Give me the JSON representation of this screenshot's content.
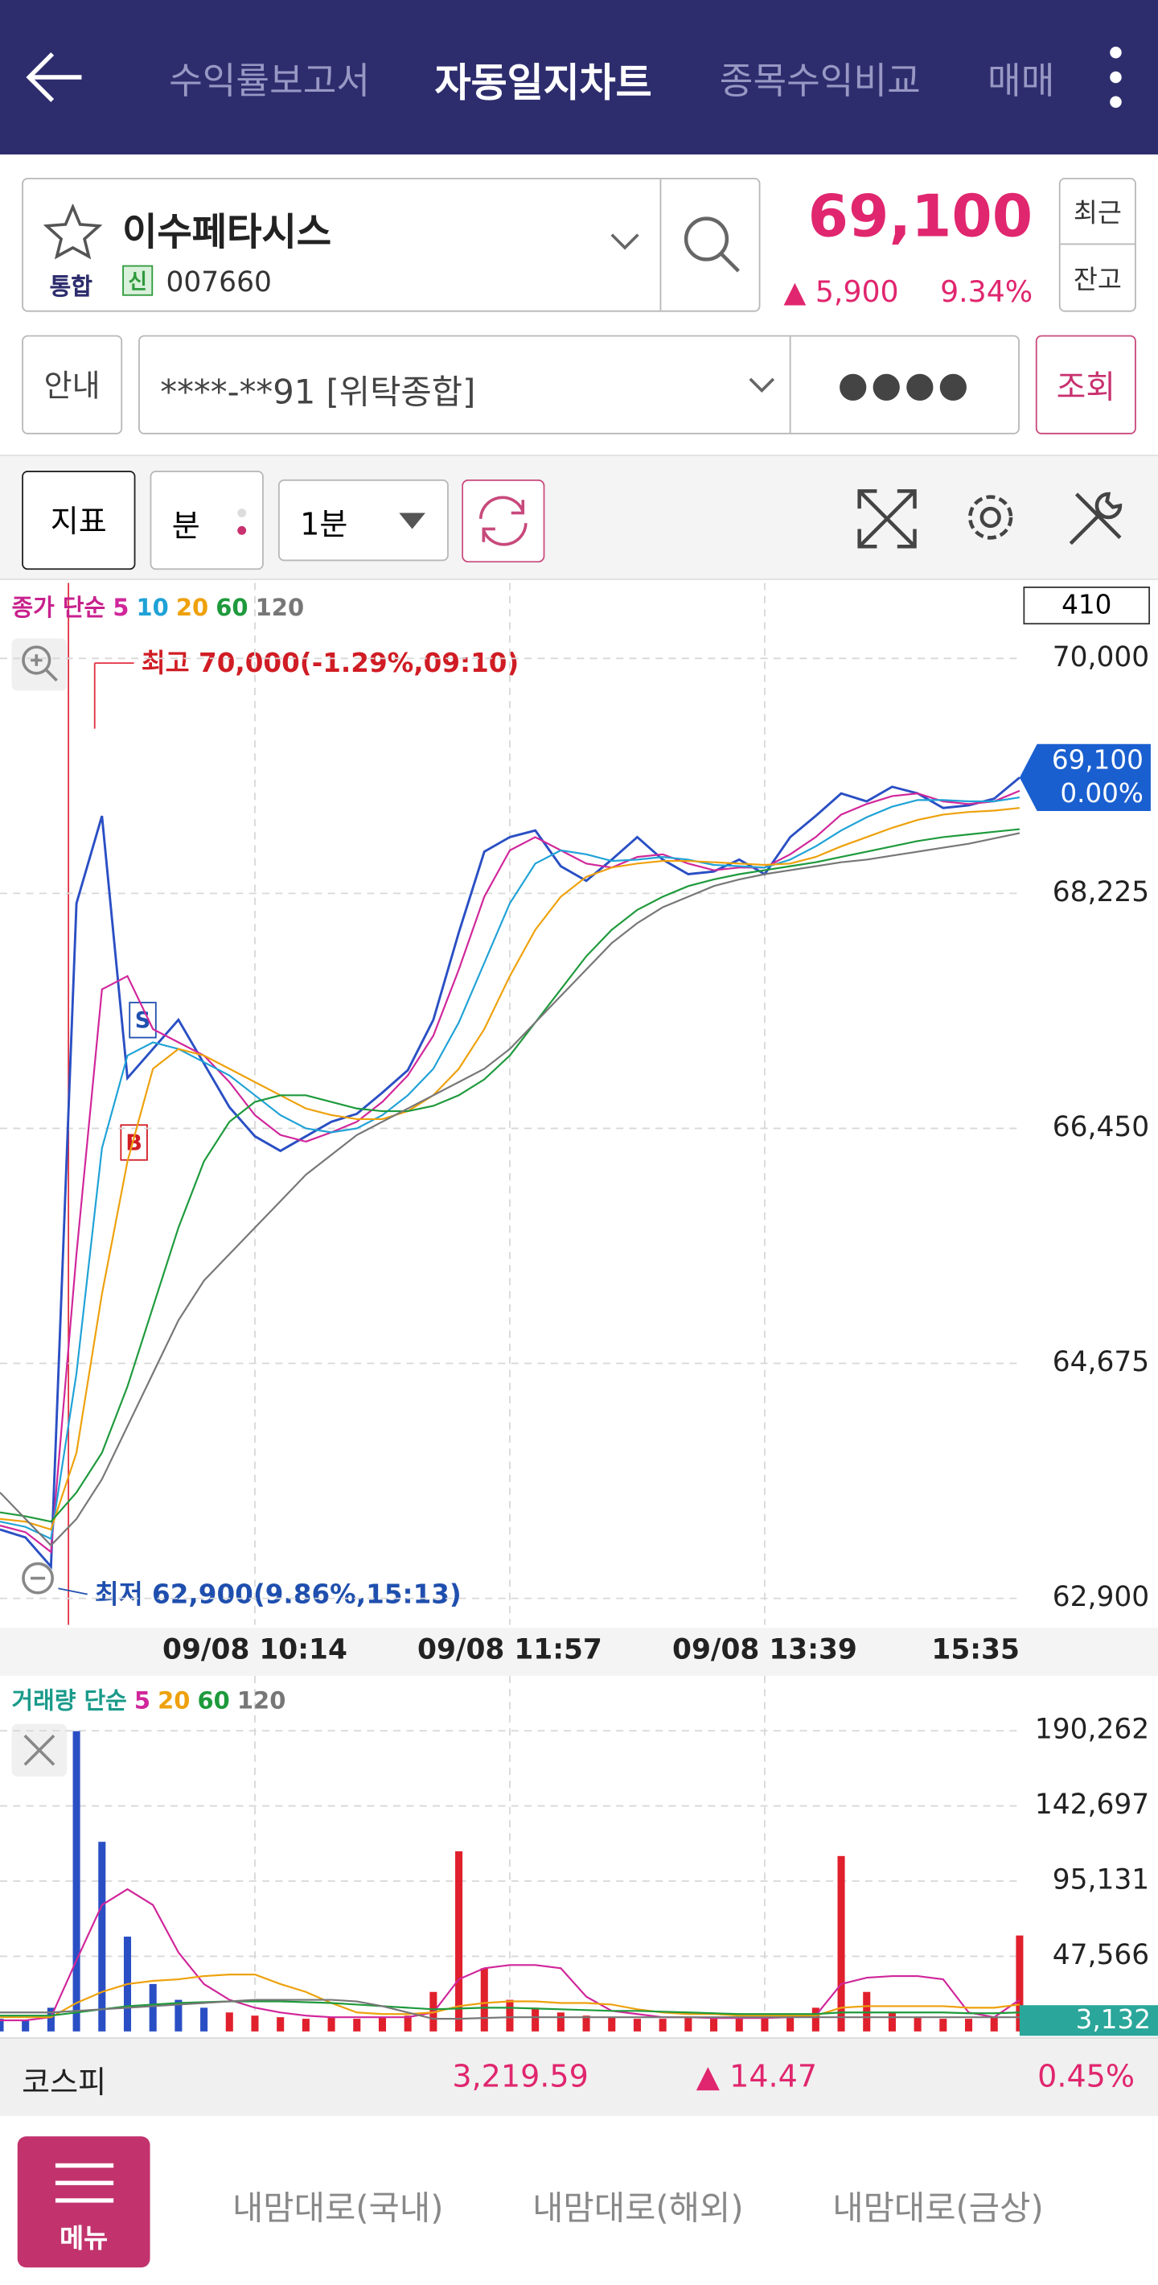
{
  "header": {
    "tabs": [
      "수익률보고서",
      "자동일지차트",
      "종목수익비교",
      "매매"
    ]
  },
  "stock": {
    "name": "이수페타시스",
    "market": "통합",
    "credit": "신",
    "code": "007660",
    "price": "69,100",
    "change": "5,900",
    "change_pct": "9.34%",
    "recent": "최근",
    "balance": "잔고"
  },
  "account": {
    "info": "안내",
    "number": "****-**91 [위탁종합]",
    "password": "●●●●",
    "query": "조회"
  },
  "toolbar": {
    "indicator": "지표",
    "period_type": "분",
    "period": "1분"
  },
  "chart_data": [
    {
      "type": "line",
      "legend_title": "종가 단순",
      "legend_title_color": "#c8208c",
      "color": "#2a4fc4",
      "categories": [
        null,
        null,
        null,
        null,
        null,
        null,
        null,
        null,
        null,
        null,
        "09/08 10:14",
        null,
        null,
        null,
        null,
        null,
        null,
        null,
        null,
        null,
        "09/08 11:57",
        null,
        null,
        null,
        null,
        null,
        null,
        null,
        null,
        null,
        "09/08 13:39",
        null,
        null,
        null,
        null,
        null,
        null,
        null,
        null,
        null,
        "15:35"
      ],
      "values": [
        63420,
        63360,
        63140,
        68150,
        68810,
        66830,
        67050,
        67270,
        66940,
        66610,
        66390,
        66280,
        66390,
        66500,
        66560,
        66720,
        66890,
        67270,
        67930,
        68540,
        68650,
        68700,
        68430,
        68320,
        68480,
        68650,
        68480,
        68370,
        68390,
        68480,
        68370,
        68650,
        68810,
        68980,
        68920,
        69030,
        68980,
        68870,
        68890,
        68940,
        69100
      ],
      "series": [
        {
          "name": "5",
          "color": "#d0269a",
          "values": [
            63450,
            63400,
            63250,
            65500,
            67500,
            67600,
            67200,
            67100,
            67000,
            66800,
            66550,
            66400,
            66350,
            66420,
            66500,
            66650,
            66850,
            67150,
            67650,
            68200,
            68550,
            68650,
            68550,
            68450,
            68420,
            68500,
            68520,
            68450,
            68400,
            68420,
            68420,
            68520,
            68650,
            68820,
            68900,
            68960,
            68980,
            68920,
            68900,
            68920,
            69000
          ]
        },
        {
          "name": "10",
          "color": "#1fa2d6",
          "values": [
            63480,
            63440,
            63350,
            64600,
            66300,
            67000,
            67100,
            67050,
            66950,
            66850,
            66700,
            66550,
            66450,
            66420,
            66450,
            66550,
            66700,
            66900,
            67250,
            67700,
            68150,
            68450,
            68550,
            68520,
            68470,
            68480,
            68500,
            68480,
            68440,
            68430,
            68420,
            68480,
            68580,
            68700,
            68800,
            68880,
            68930,
            68930,
            68920,
            68920,
            68950
          ]
        },
        {
          "name": "20",
          "color": "#eea10c",
          "values": [
            63500,
            63480,
            63420,
            64000,
            65200,
            66200,
            66900,
            67050,
            67000,
            66900,
            66800,
            66700,
            66600,
            66550,
            66520,
            66520,
            66580,
            66700,
            66900,
            67200,
            67600,
            67950,
            68200,
            68350,
            68420,
            68450,
            68470,
            68470,
            68460,
            68450,
            68440,
            68450,
            68500,
            68580,
            68650,
            68720,
            68780,
            68820,
            68840,
            68850,
            68870
          ]
        },
        {
          "name": "60",
          "color": "#1e9a3c",
          "values": [
            63550,
            63520,
            63480,
            63700,
            64000,
            64500,
            65100,
            65700,
            66200,
            66500,
            66650,
            66700,
            66700,
            66650,
            66600,
            66580,
            66580,
            66620,
            66700,
            66820,
            67000,
            67250,
            67500,
            67750,
            67950,
            68100,
            68200,
            68280,
            68330,
            68370,
            68400,
            68430,
            68460,
            68500,
            68540,
            68580,
            68620,
            68650,
            68670,
            68690,
            68710
          ]
        },
        {
          "name": "120",
          "color": "#777777",
          "values": [
            63700,
            63500,
            63300,
            63500,
            63800,
            64200,
            64600,
            65000,
            65300,
            65500,
            65700,
            65900,
            66100,
            66250,
            66400,
            66500,
            66600,
            66700,
            66800,
            66900,
            67050,
            67250,
            67450,
            67650,
            67850,
            68000,
            68120,
            68200,
            68280,
            68330,
            68370,
            68400,
            68430,
            68460,
            68480,
            68510,
            68540,
            68570,
            68600,
            68640,
            68680
          ]
        }
      ],
      "ylim": [
        62700,
        70570
      ],
      "yticks": [
        {
          "value": 62900,
          "label": "62,900"
        },
        {
          "value": 64675,
          "label": "64,675"
        },
        {
          "value": 66450,
          "label": "66,450"
        },
        {
          "value": 68225,
          "label": "68,225"
        },
        {
          "value": 70000,
          "label": "70,000"
        }
      ],
      "grid": true,
      "count_box": "410",
      "high_label": "최고 70,000(-1.29%,09:10)",
      "low_label": "최저 62,900(9.86%,15:13)",
      "price_tag": "69,100",
      "change_tag": "0.00%",
      "markers": [
        "S",
        "B"
      ]
    },
    {
      "type": "bar",
      "legend_title": "거래량 단순",
      "legend_title_color": "#1a9a8a",
      "color": "#e0202c",
      "values": [
        8000,
        7000,
        15000,
        190000,
        120000,
        60000,
        30000,
        20000,
        15000,
        12000,
        10000,
        9000,
        8000,
        9000,
        8000,
        9000,
        10000,
        25000,
        114000,
        40000,
        20000,
        15000,
        12000,
        10000,
        9000,
        8000,
        8000,
        9000,
        8000,
        8000,
        9000,
        10000,
        15000,
        111000,
        25000,
        12000,
        9000,
        8000,
        8000,
        9000,
        60700
      ],
      "series": [
        {
          "name": "5",
          "color": "#d0269a",
          "values": [
            7000,
            7000,
            9000,
            45000,
            80000,
            90000,
            80000,
            50000,
            30000,
            20000,
            15000,
            12000,
            10000,
            9000,
            9000,
            9000,
            9000,
            12000,
            33000,
            40000,
            42000,
            42000,
            40000,
            22000,
            13000,
            11000,
            9000,
            9000,
            8500,
            8500,
            8500,
            9000,
            10000,
            30000,
            34000,
            35000,
            35000,
            33000,
            12000,
            9000,
            20000
          ]
        },
        {
          "name": "20",
          "color": "#eea10c",
          "values": [
            9000,
            9000,
            9000,
            18000,
            25000,
            30000,
            32000,
            33000,
            35000,
            36000,
            36000,
            30000,
            25000,
            18000,
            12000,
            11000,
            11000,
            12000,
            16000,
            18000,
            19000,
            19000,
            18000,
            18000,
            17000,
            14000,
            12000,
            11000,
            11000,
            10000,
            10000,
            10000,
            10000,
            15000,
            16000,
            16000,
            16000,
            16000,
            15000,
            15000,
            17000
          ]
        },
        {
          "name": "60",
          "color": "#1e9a3c",
          "values": [
            10000,
            10000,
            10000,
            12000,
            14000,
            16000,
            17000,
            18000,
            18500,
            19000,
            19000,
            19000,
            18500,
            18000,
            17000,
            16000,
            15000,
            14000,
            14500,
            15000,
            15000,
            14500,
            14000,
            13500,
            13000,
            13000,
            12500,
            12000,
            11500,
            11000,
            11000,
            11000,
            11000,
            12000,
            12000,
            12000,
            12000,
            12000,
            11500,
            11500,
            12000
          ]
        },
        {
          "name": "120",
          "color": "#777777",
          "values": [
            12000,
            12000,
            12000,
            13000,
            14000,
            15000,
            16000,
            17000,
            18000,
            19000,
            20000,
            20000,
            20000,
            20000,
            19000,
            16000,
            12000,
            8000,
            8000,
            8500,
            9000,
            9000,
            9000,
            9000,
            9000,
            9000,
            9000,
            9000,
            9000,
            9000,
            9000,
            9000,
            9000,
            9000,
            9000,
            9000,
            9000,
            9000,
            9000,
            9000,
            9000
          ]
        }
      ],
      "ylim": [
        0,
        225000
      ],
      "yticks": [
        {
          "value": 47566,
          "label": "47,566"
        },
        {
          "value": 95131,
          "label": "95,131"
        },
        {
          "value": 142697,
          "label": "142,697"
        },
        {
          "value": 190262,
          "label": "190,262"
        }
      ],
      "grid": true,
      "last_tag": "3,132"
    }
  ],
  "market": {
    "name": "코스피",
    "value": "3,219.59",
    "change": "14.47",
    "change_pct": "0.45%"
  },
  "nav": {
    "menu": "메뉴",
    "items": [
      "내맘대로(국내)",
      "내맘대로(해외)",
      "내맘대로(금상)"
    ]
  }
}
